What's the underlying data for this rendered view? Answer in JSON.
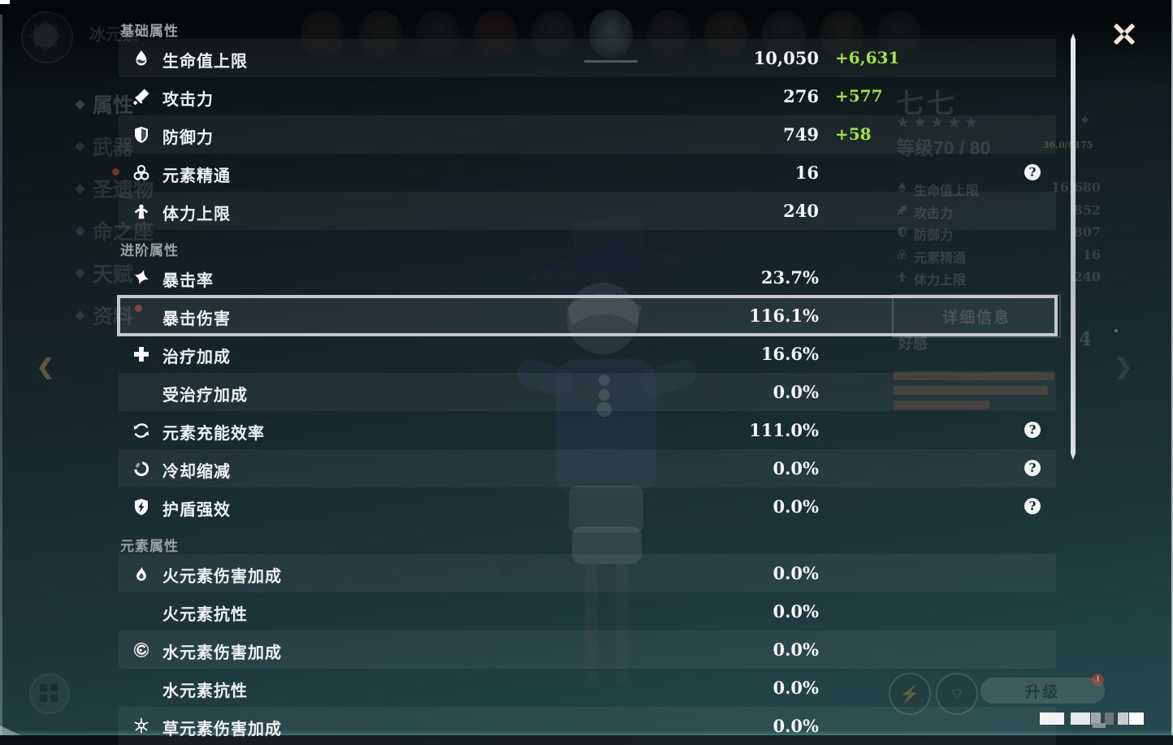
{
  "panel": {
    "sections": [
      {
        "title": "基础属性",
        "rows": [
          {
            "icon": "hp-icon",
            "label": "生命值上限",
            "value": "10,050",
            "bonus": "+6,631",
            "help": false,
            "highlight": false
          },
          {
            "icon": "atk-icon",
            "label": "攻击力",
            "value": "276",
            "bonus": "+577",
            "help": false,
            "highlight": false
          },
          {
            "icon": "def-icon",
            "label": "防御力",
            "value": "749",
            "bonus": "+58",
            "help": false,
            "highlight": false
          },
          {
            "icon": "elemental-mastery-icon",
            "label": "元素精通",
            "value": "16",
            "bonus": "",
            "help": true,
            "highlight": false
          },
          {
            "icon": "stamina-icon",
            "label": "体力上限",
            "value": "240",
            "bonus": "",
            "help": false,
            "highlight": false
          }
        ]
      },
      {
        "title": "进阶属性",
        "rows": [
          {
            "icon": "crit-rate-icon",
            "label": "暴击率",
            "value": "23.7%",
            "bonus": "",
            "help": false,
            "highlight": false
          },
          {
            "icon": "",
            "label": "暴击伤害",
            "value": "116.1%",
            "bonus": "",
            "help": false,
            "highlight": true
          },
          {
            "icon": "healing-bonus-icon",
            "label": "治疗加成",
            "value": "16.6%",
            "bonus": "",
            "help": false,
            "highlight": false
          },
          {
            "icon": "",
            "label": "受治疗加成",
            "value": "0.0%",
            "bonus": "",
            "help": false,
            "highlight": false
          },
          {
            "icon": "energy-recharge-icon",
            "label": "元素充能效率",
            "value": "111.0%",
            "bonus": "",
            "help": true,
            "highlight": false
          },
          {
            "icon": "cooldown-reduction-icon",
            "label": "冷却缩减",
            "value": "0.0%",
            "bonus": "",
            "help": true,
            "highlight": false
          },
          {
            "icon": "shield-strength-icon",
            "label": "护盾强效",
            "value": "0.0%",
            "bonus": "",
            "help": true,
            "highlight": false
          }
        ]
      },
      {
        "title": "元素属性",
        "rows": [
          {
            "icon": "pyro-icon",
            "label": "火元素伤害加成",
            "value": "0.0%",
            "bonus": "",
            "help": false,
            "highlight": false
          },
          {
            "icon": "",
            "label": "火元素抗性",
            "value": "0.0%",
            "bonus": "",
            "help": false,
            "highlight": false
          },
          {
            "icon": "hydro-icon",
            "label": "水元素伤害加成",
            "value": "0.0%",
            "bonus": "",
            "help": false,
            "highlight": false
          },
          {
            "icon": "",
            "label": "水元素抗性",
            "value": "0.0%",
            "bonus": "",
            "help": false,
            "highlight": false
          },
          {
            "icon": "dendro-icon",
            "label": "草元素伤害加成",
            "value": "0.0%",
            "bonus": "",
            "help": false,
            "highlight": false
          }
        ]
      }
    ]
  },
  "background": {
    "element_label": "冰元素",
    "sidebar_items": [
      "属性",
      "武器",
      "圣遗物",
      "命之座",
      "天赋",
      "资料"
    ],
    "character": {
      "name": "七七",
      "stars": "★★★★★",
      "sparkle": "✦",
      "level": "等级70 / 80",
      "exp_fragment": "36,0/8175"
    },
    "mini_stats": [
      {
        "label": "生命值上限",
        "value": "16,680"
      },
      {
        "label": "攻击力",
        "value": "852"
      },
      {
        "label": "防御力",
        "value": "807"
      },
      {
        "label": "元素精通",
        "value": "16"
      },
      {
        "label": "体力上限",
        "value": "240"
      }
    ],
    "detail_button": "详细信息",
    "friendship": {
      "label": "好感",
      "value": "4"
    },
    "upgrade_button": "升级",
    "upgrade_badge": "!"
  },
  "colors": {
    "bonus_green": "#9fe24a",
    "highlight_border": "#c3c9cb",
    "value_white": "#f3f6f5",
    "section_gray": "#99a2a5"
  }
}
